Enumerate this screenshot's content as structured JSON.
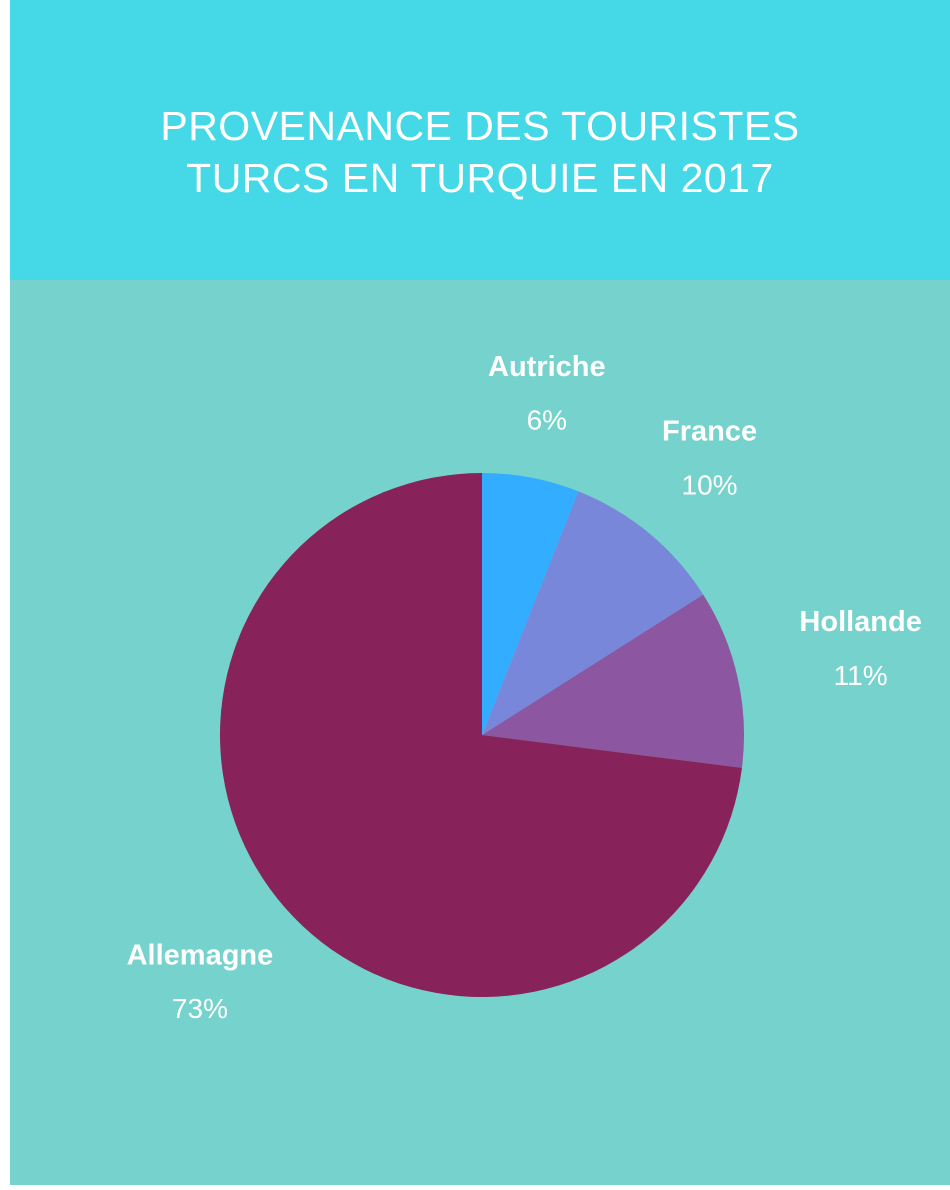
{
  "chart_data": {
    "type": "pie",
    "title": "PROVENANCE DES TOURISTES TURCS EN TURQUIE EN 2017",
    "categories": [
      "Autriche",
      "France",
      "Hollande",
      "Allemagne"
    ],
    "values": [
      6,
      10,
      11,
      73
    ],
    "value_labels": [
      "6%",
      "10%",
      "11%",
      "73%"
    ],
    "colors": [
      "#33adff",
      "#7887d9",
      "#8c56a0",
      "#88225a"
    ]
  }
}
